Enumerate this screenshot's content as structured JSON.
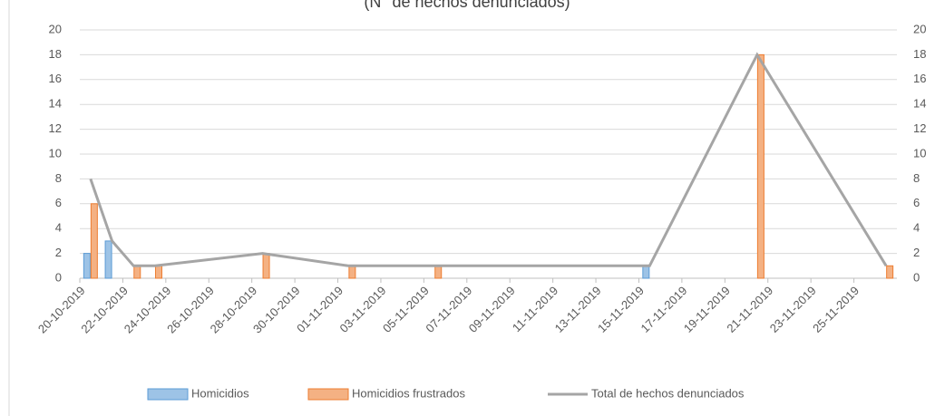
{
  "chart_data": {
    "type": "bar",
    "title": "(N° de hechos denunciados)",
    "x": [
      "20-10-2019",
      "21-10-2019",
      "22-10-2019",
      "23-10-2019",
      "28-10-2019",
      "01-11-2019",
      "05-11-2019",
      "15-11-2019",
      "20-11-2019",
      "26-11-2019"
    ],
    "xlim": [
      "20-10-2019",
      "27-11-2019"
    ],
    "xticks": [
      "20-10-2019",
      "22-10-2019",
      "24-10-2019",
      "26-10-2019",
      "28-10-2019",
      "30-10-2019",
      "01-11-2019",
      "03-11-2019",
      "05-11-2019",
      "07-11-2019",
      "09-11-2019",
      "11-11-2019",
      "13-11-2019",
      "15-11-2019",
      "17-11-2019",
      "19-11-2019",
      "21-11-2019",
      "23-11-2019",
      "25-11-2019"
    ],
    "series": [
      {
        "name": "Homicidios",
        "type": "bar",
        "color": "#9dc3e6",
        "values": [
          2,
          3,
          null,
          null,
          null,
          null,
          null,
          1,
          null,
          null
        ]
      },
      {
        "name": "Homicidios frustrados",
        "type": "bar",
        "color": "#f4b183",
        "values": [
          6,
          null,
          1,
          1,
          2,
          1,
          1,
          null,
          18,
          1
        ]
      },
      {
        "name": "Total de hechos denunciados",
        "type": "line",
        "axis": "y2",
        "color": "#a5a5a5",
        "values": [
          8,
          3,
          1,
          1,
          2,
          1,
          1,
          1,
          18,
          1
        ]
      }
    ],
    "ylim": [
      0,
      20
    ],
    "yticks": [
      0,
      2,
      4,
      6,
      8,
      10,
      12,
      14,
      16,
      18,
      20
    ],
    "y2lim": [
      0,
      20
    ],
    "y2ticks": [
      0,
      2,
      4,
      6,
      8,
      10,
      12,
      14,
      16,
      18,
      20
    ],
    "grid": true,
    "legend": "bottom"
  }
}
